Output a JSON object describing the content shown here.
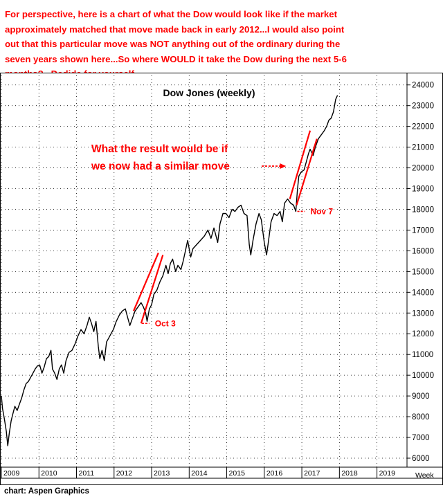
{
  "header": {
    "lines": [
      "For perspective, here is a chart of what the Dow would look like if the market",
      "approximately matched that move made back in early 2012...I would also point",
      "out that this particular move was NOT anything out of the ordinary during the",
      "seven years shown here...So where WOULD it take the Dow during the next 5-6",
      "months?...Dedide for yourself..."
    ]
  },
  "chart_data": {
    "type": "line",
    "title": "Dow Jones (weekly)",
    "xlabel": "",
    "ylabel": "",
    "ylim": [
      5800,
      24600
    ],
    "xlim": [
      2009.0,
      2019.8
    ],
    "y_ticks": [
      6000,
      7000,
      8000,
      9000,
      10000,
      11000,
      12000,
      13000,
      14000,
      15000,
      16000,
      17000,
      18000,
      19000,
      20000,
      21000,
      22000,
      23000,
      24000
    ],
    "x_ticks": [
      "2009",
      "2010",
      "2011",
      "2012",
      "2013",
      "2014",
      "2015",
      "2016",
      "2017",
      "2018",
      "2019"
    ],
    "x_tick_positions": [
      2009,
      2010,
      2011,
      2012,
      2013,
      2014,
      2015,
      2016,
      2017,
      2018,
      2019
    ],
    "period_label": "Week",
    "grid": true,
    "series": [
      {
        "values": [
          [
            2009.0,
            9000
          ],
          [
            2009.03,
            8400
          ],
          [
            2009.08,
            7900
          ],
          [
            2009.13,
            7300
          ],
          [
            2009.17,
            6600
          ],
          [
            2009.21,
            7200
          ],
          [
            2009.26,
            7800
          ],
          [
            2009.3,
            8100
          ],
          [
            2009.36,
            8500
          ],
          [
            2009.42,
            8300
          ],
          [
            2009.48,
            8600
          ],
          [
            2009.54,
            8900
          ],
          [
            2009.6,
            9300
          ],
          [
            2009.66,
            9600
          ],
          [
            2009.72,
            9700
          ],
          [
            2009.78,
            9900
          ],
          [
            2009.84,
            10100
          ],
          [
            2009.9,
            10300
          ],
          [
            2009.96,
            10450
          ],
          [
            2010.02,
            10500
          ],
          [
            2010.08,
            10100
          ],
          [
            2010.14,
            10400
          ],
          [
            2010.2,
            10800
          ],
          [
            2010.26,
            10900
          ],
          [
            2010.32,
            11200
          ],
          [
            2010.36,
            10300
          ],
          [
            2010.42,
            10100
          ],
          [
            2010.48,
            9800
          ],
          [
            2010.54,
            10300
          ],
          [
            2010.6,
            10500
          ],
          [
            2010.66,
            10100
          ],
          [
            2010.72,
            10700
          ],
          [
            2010.8,
            11100
          ],
          [
            2010.88,
            11200
          ],
          [
            2010.96,
            11500
          ],
          [
            2011.04,
            11900
          ],
          [
            2011.12,
            12200
          ],
          [
            2011.2,
            12000
          ],
          [
            2011.28,
            12400
          ],
          [
            2011.34,
            12800
          ],
          [
            2011.4,
            12500
          ],
          [
            2011.46,
            12100
          ],
          [
            2011.52,
            12600
          ],
          [
            2011.58,
            11400
          ],
          [
            2011.62,
            10800
          ],
          [
            2011.68,
            11200
          ],
          [
            2011.74,
            10700
          ],
          [
            2011.8,
            11600
          ],
          [
            2011.86,
            11800
          ],
          [
            2011.92,
            12000
          ],
          [
            2011.98,
            12200
          ],
          [
            2012.06,
            12600
          ],
          [
            2012.14,
            12900
          ],
          [
            2012.22,
            13100
          ],
          [
            2012.3,
            13200
          ],
          [
            2012.36,
            12800
          ],
          [
            2012.42,
            12400
          ],
          [
            2012.48,
            12700
          ],
          [
            2012.56,
            13100
          ],
          [
            2012.64,
            13300
          ],
          [
            2012.72,
            13500
          ],
          [
            2012.78,
            13300
          ],
          [
            2012.84,
            13000
          ],
          [
            2012.88,
            12600
          ],
          [
            2012.94,
            13200
          ],
          [
            2013.0,
            13400
          ],
          [
            2013.06,
            13900
          ],
          [
            2013.14,
            14100
          ],
          [
            2013.22,
            14500
          ],
          [
            2013.3,
            14800
          ],
          [
            2013.38,
            15300
          ],
          [
            2013.44,
            14900
          ],
          [
            2013.5,
            15400
          ],
          [
            2013.56,
            15600
          ],
          [
            2013.64,
            15000
          ],
          [
            2013.7,
            15300
          ],
          [
            2013.78,
            15100
          ],
          [
            2013.84,
            15500
          ],
          [
            2013.9,
            16000
          ],
          [
            2013.96,
            16500
          ],
          [
            2014.04,
            15700
          ],
          [
            2014.1,
            16100
          ],
          [
            2014.2,
            16300
          ],
          [
            2014.3,
            16500
          ],
          [
            2014.4,
            16700
          ],
          [
            2014.5,
            17000
          ],
          [
            2014.58,
            16600
          ],
          [
            2014.66,
            17100
          ],
          [
            2014.76,
            16400
          ],
          [
            2014.82,
            17300
          ],
          [
            2014.9,
            17800
          ],
          [
            2014.98,
            17800
          ],
          [
            2015.06,
            17600
          ],
          [
            2015.14,
            18000
          ],
          [
            2015.22,
            17900
          ],
          [
            2015.3,
            18100
          ],
          [
            2015.38,
            18200
          ],
          [
            2015.46,
            17800
          ],
          [
            2015.54,
            17700
          ],
          [
            2015.6,
            16300
          ],
          [
            2015.64,
            15800
          ],
          [
            2015.7,
            16500
          ],
          [
            2015.78,
            17300
          ],
          [
            2015.86,
            17800
          ],
          [
            2015.92,
            17500
          ],
          [
            2016.0,
            16400
          ],
          [
            2016.06,
            15800
          ],
          [
            2016.1,
            16300
          ],
          [
            2016.18,
            17400
          ],
          [
            2016.26,
            17800
          ],
          [
            2016.34,
            17700
          ],
          [
            2016.42,
            17900
          ],
          [
            2016.48,
            17400
          ],
          [
            2016.54,
            18300
          ],
          [
            2016.62,
            18500
          ],
          [
            2016.7,
            18300
          ],
          [
            2016.78,
            18200
          ],
          [
            2016.84,
            17900
          ],
          [
            2016.88,
            18900
          ],
          [
            2016.92,
            19600
          ],
          [
            2016.98,
            19800
          ],
          [
            2017.06,
            19900
          ],
          [
            2017.12,
            20300
          ],
          [
            2017.18,
            20700
          ],
          [
            2017.22,
            20900
          ],
          [
            2017.3,
            20600
          ],
          [
            2017.36,
            21000
          ],
          [
            2017.44,
            21400
          ],
          [
            2017.52,
            21600
          ],
          [
            2017.6,
            21800
          ],
          [
            2017.66,
            22000
          ],
          [
            2017.72,
            22300
          ],
          [
            2017.78,
            22400
          ],
          [
            2017.84,
            22700
          ],
          [
            2017.9,
            23300
          ],
          [
            2017.95,
            23500
          ]
        ]
      }
    ],
    "channels": [
      {
        "label": "Oct 3",
        "upper": [
          [
            2012.52,
            13100
          ],
          [
            2013.18,
            15900
          ]
        ],
        "lower": [
          [
            2012.72,
            12500
          ],
          [
            2013.3,
            15800
          ]
        ],
        "marker": [
          [
            2012.74,
            12500
          ],
          [
            2012.94,
            12500
          ]
        ]
      },
      {
        "label": "Nov 7",
        "upper": [
          [
            2016.68,
            18500
          ],
          [
            2017.22,
            21800
          ]
        ],
        "lower": [
          [
            2016.86,
            18200
          ],
          [
            2017.4,
            21400
          ]
        ],
        "marker": [
          [
            2016.88,
            17900
          ],
          [
            2017.08,
            17900
          ]
        ]
      }
    ],
    "projection": {
      "text_lines": [
        "What the result would be if",
        "we now had a similar move"
      ],
      "arrow_to": [
        2016.58,
        20000
      ]
    }
  },
  "footer": {
    "credit": "chart: Aspen Graphics"
  }
}
